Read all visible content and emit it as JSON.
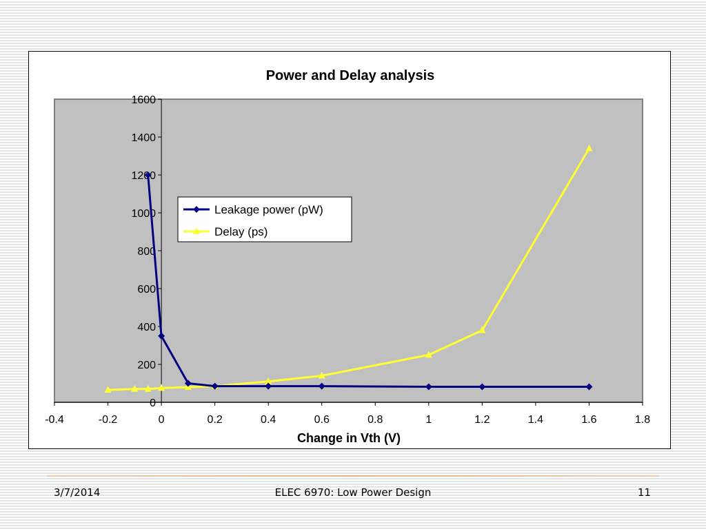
{
  "slide": {
    "footer_date": "3/7/2014",
    "footer_title": "ELEC 6970: Low Power Design",
    "page_number": "11"
  },
  "colors": {
    "plot_area": "#c0c0c0",
    "leakage_series": "#000080",
    "delay_series": "#ffff33",
    "axis": "#000000"
  },
  "chart_data": {
    "type": "line",
    "title": "Power and Delay analysis",
    "xlabel": "Change in Vth (V)",
    "ylabel": "",
    "xlim": [
      -0.4,
      1.8
    ],
    "ylim": [
      0,
      1600
    ],
    "x_ticks": [
      -0.4,
      -0.2,
      0,
      0.2,
      0.4,
      0.6,
      0.8,
      1,
      1.2,
      1.4,
      1.6,
      1.8
    ],
    "x_tick_labels": [
      "-0.4",
      "-0.2",
      "0",
      "0.2",
      "0.4",
      "0.6",
      "0.8",
      "1",
      "1.2",
      "1.4",
      "1.6",
      "1.8"
    ],
    "y_ticks": [
      0,
      200,
      400,
      600,
      800,
      1000,
      1200,
      1400,
      1600
    ],
    "y_tick_labels": [
      "0",
      "200",
      "400",
      "600",
      "800",
      "1000",
      "1200",
      "1400",
      "1600"
    ],
    "grid": false,
    "legend_placement": "upper-left",
    "series": [
      {
        "name": "Leakage power (pW)",
        "marker": "diamond",
        "x": [
          -0.05,
          0,
          0.1,
          0.2,
          0.4,
          0.6,
          1.0,
          1.2,
          1.6
        ],
        "y": [
          1200,
          350,
          100,
          85,
          85,
          85,
          82,
          82,
          82
        ]
      },
      {
        "name": "Delay (ps)",
        "marker": "triangle",
        "x": [
          -0.2,
          -0.1,
          -0.05,
          0,
          0.1,
          0.2,
          0.4,
          0.6,
          1.0,
          1.2,
          1.6
        ],
        "y": [
          65,
          70,
          70,
          75,
          80,
          85,
          110,
          140,
          250,
          380,
          1340
        ]
      }
    ]
  }
}
